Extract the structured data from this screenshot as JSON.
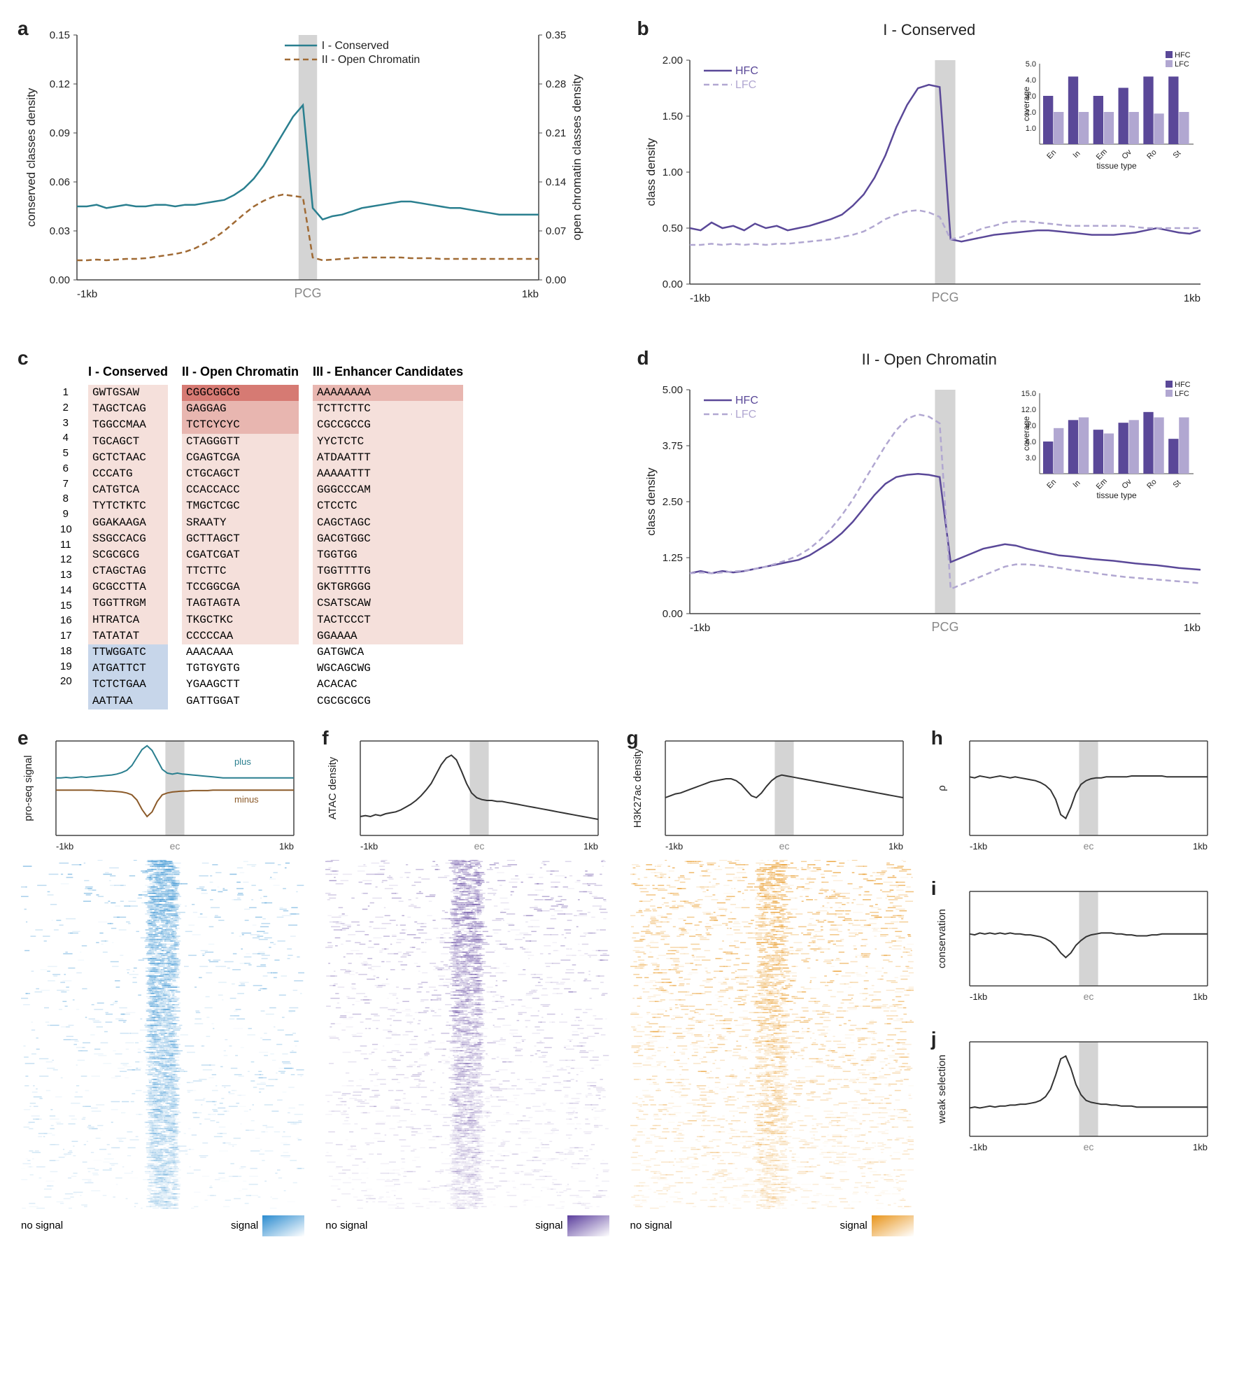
{
  "colors": {
    "teal": "#2a7f8f",
    "brown": "#8b5a29",
    "brown_dash": "#a06a34",
    "purple": "#5a4898",
    "purple_light": "#b1a7d1",
    "gray_band": "#d4d4d4",
    "axis": "#444444",
    "text": "#222222",
    "blue_heat": "#2a8bcf",
    "purple_heat": "#5a3d9c",
    "orange_heat": "#e8941a",
    "red_shade_dark": "#d67a73",
    "red_shade_mid": "#e8b6b0",
    "red_shade_light": "#f5e0db",
    "blue_shade": "#c7d6ea"
  },
  "panel_a": {
    "label": "a",
    "legend1": "I - Conserved",
    "legend2": "II - Open Chromatin",
    "xlabel_left": "-1kb",
    "xlabel_center": "PCG",
    "xlabel_right": "1kb",
    "ylabel_left": "conserved classes density",
    "ylabel_right": "open chromatin classes density",
    "yleft_ticks": [
      "0.00",
      "0.03",
      "0.06",
      "0.09",
      "0.12",
      "0.15"
    ],
    "yright_ticks": [
      "0.00",
      "0.07",
      "0.14",
      "0.21",
      "0.28",
      "0.35"
    ],
    "series1": [
      0.045,
      0.045,
      0.046,
      0.044,
      0.045,
      0.046,
      0.045,
      0.045,
      0.046,
      0.046,
      0.045,
      0.046,
      0.046,
      0.047,
      0.048,
      0.049,
      0.052,
      0.056,
      0.062,
      0.07,
      0.08,
      0.09,
      0.1,
      0.107,
      0.044,
      0.037,
      0.039,
      0.04,
      0.042,
      0.044,
      0.045,
      0.046,
      0.047,
      0.048,
      0.048,
      0.047,
      0.046,
      0.045,
      0.044,
      0.044,
      0.043,
      0.042,
      0.041,
      0.04,
      0.04,
      0.04,
      0.04,
      0.04
    ],
    "series2": [
      0.028,
      0.028,
      0.029,
      0.028,
      0.029,
      0.03,
      0.03,
      0.031,
      0.033,
      0.035,
      0.037,
      0.04,
      0.045,
      0.052,
      0.06,
      0.07,
      0.082,
      0.094,
      0.105,
      0.113,
      0.119,
      0.122,
      0.12,
      0.118,
      0.032,
      0.028,
      0.029,
      0.03,
      0.031,
      0.032,
      0.032,
      0.032,
      0.032,
      0.032,
      0.031,
      0.031,
      0.031,
      0.03,
      0.03,
      0.03,
      0.03,
      0.03,
      0.03,
      0.03,
      0.03,
      0.03,
      0.03,
      0.03
    ]
  },
  "panel_b": {
    "label": "b",
    "title": "I - Conserved",
    "legend_hfc": "HFC",
    "legend_lfc": "LFC",
    "xlabel_left": "-1kb",
    "xlabel_center": "PCG",
    "xlabel_right": "1kb",
    "ylabel": "class density",
    "yticks": [
      "0.00",
      "0.50",
      "1.00",
      "1.50",
      "2.00"
    ],
    "hfc": [
      0.5,
      0.48,
      0.55,
      0.5,
      0.52,
      0.48,
      0.54,
      0.5,
      0.52,
      0.48,
      0.5,
      0.52,
      0.55,
      0.58,
      0.62,
      0.7,
      0.8,
      0.95,
      1.15,
      1.4,
      1.6,
      1.75,
      1.78,
      1.76,
      0.4,
      0.38,
      0.4,
      0.42,
      0.44,
      0.45,
      0.46,
      0.47,
      0.48,
      0.48,
      0.47,
      0.46,
      0.45,
      0.44,
      0.44,
      0.44,
      0.45,
      0.46,
      0.48,
      0.5,
      0.48,
      0.46,
      0.45,
      0.48
    ],
    "lfc": [
      0.35,
      0.35,
      0.36,
      0.35,
      0.36,
      0.35,
      0.36,
      0.35,
      0.36,
      0.36,
      0.37,
      0.38,
      0.39,
      0.4,
      0.42,
      0.44,
      0.47,
      0.52,
      0.58,
      0.62,
      0.65,
      0.66,
      0.64,
      0.6,
      0.4,
      0.42,
      0.46,
      0.5,
      0.52,
      0.55,
      0.56,
      0.56,
      0.55,
      0.54,
      0.53,
      0.52,
      0.52,
      0.52,
      0.52,
      0.52,
      0.52,
      0.51,
      0.5,
      0.5,
      0.5,
      0.5,
      0.5,
      0.5
    ],
    "inset": {
      "ylabel": "coverage",
      "xlabel": "tissue type",
      "yticks": [
        "1.0",
        "2.0",
        "3.0",
        "4.0",
        "5.0"
      ],
      "categories": [
        "En",
        "In",
        "Em",
        "Ov",
        "Ro",
        "St"
      ],
      "hfc_vals": [
        3.0,
        4.2,
        3.0,
        3.5,
        4.2,
        4.2
      ],
      "lfc_vals": [
        2.0,
        2.0,
        2.0,
        2.0,
        1.9,
        2.0
      ],
      "legend_hfc": "HFC",
      "legend_lfc": "LFC"
    }
  },
  "panel_c": {
    "label": "c",
    "headers": [
      "I - Conserved",
      "II - Open Chromatin",
      "III - Enhancer Candidates"
    ],
    "col1": [
      "GWTGSAW",
      "TAGCTCAG",
      "TGGCCMAA",
      "TGCAGCT",
      "GCTCTAAC",
      "CCCATG",
      "CATGTCA",
      "TYTCTKTC",
      "GGAKAAGA",
      "SSGCCACG",
      "SCGCGCG",
      "CTAGCTAG",
      "GCGCCTTA",
      "TGGTTRGM",
      "HTRATCA",
      "TATATAT",
      "TTWGGATC",
      "ATGATTCT",
      "TCTCTGAA",
      "AATTAA"
    ],
    "col2": [
      "CGGCGGCG",
      "GAGGAG",
      "TCTCYCYC",
      "CTAGGGTT",
      "CGAGTCGA",
      "CTGCAGCT",
      "CCACCACC",
      "TMGCTCGC",
      "SRAATY",
      "GCTTAGCT",
      "CGATCGAT",
      "TTCTTC",
      "TCCGGCGA",
      "TAGTAGTA",
      "TKGCTKC",
      "CCCCCAA",
      "AAACAAA",
      "TGTGYGTG",
      "YGAAGCTT",
      "GATTGGAT"
    ],
    "col3": [
      "AAAAAAAA",
      "TCTTCTTC",
      "CGCCGCCG",
      "YYCTCTC",
      "ATDAATTT",
      "AAAAATTT",
      "GGGCCCAM",
      "CTCCTC",
      "CAGCTAGC",
      "GACGTGGC",
      "TGGTGG",
      "TGGTTTTG",
      "GKTGRGGG",
      "CSATSCAW",
      "TACTCCCT",
      "GGAAAA",
      "GATGWCA",
      "WGCAGCWG",
      "ACACAC",
      "CGCGCGCG"
    ]
  },
  "panel_d": {
    "label": "d",
    "title": "II - Open Chromatin",
    "legend_hfc": "HFC",
    "legend_lfc": "LFC",
    "xlabel_left": "-1kb",
    "xlabel_center": "PCG",
    "xlabel_right": "1kb",
    "ylabel": "class density",
    "yticks": [
      "0.00",
      "1.25",
      "2.50",
      "3.75",
      "5.00"
    ],
    "hfc": [
      0.9,
      0.95,
      0.9,
      0.95,
      0.92,
      0.95,
      1.0,
      1.05,
      1.1,
      1.15,
      1.2,
      1.3,
      1.45,
      1.6,
      1.8,
      2.05,
      2.35,
      2.65,
      2.9,
      3.05,
      3.1,
      3.12,
      3.1,
      3.05,
      1.15,
      1.25,
      1.35,
      1.45,
      1.5,
      1.55,
      1.52,
      1.45,
      1.4,
      1.35,
      1.3,
      1.28,
      1.25,
      1.22,
      1.2,
      1.18,
      1.15,
      1.12,
      1.1,
      1.08,
      1.05,
      1.02,
      1.0,
      0.98
    ],
    "lfc": [
      0.9,
      0.92,
      0.9,
      0.92,
      0.94,
      0.96,
      1.0,
      1.05,
      1.12,
      1.2,
      1.3,
      1.45,
      1.65,
      1.9,
      2.2,
      2.55,
      2.95,
      3.35,
      3.75,
      4.1,
      4.35,
      4.45,
      4.4,
      4.25,
      0.55,
      0.65,
      0.75,
      0.85,
      0.95,
      1.05,
      1.1,
      1.1,
      1.08,
      1.05,
      1.02,
      0.98,
      0.95,
      0.92,
      0.88,
      0.85,
      0.82,
      0.8,
      0.78,
      0.76,
      0.74,
      0.72,
      0.7,
      0.68
    ],
    "inset": {
      "ylabel": "coverage",
      "xlabel": "tissue type",
      "yticks": [
        "3.0",
        "6.0",
        "9.0",
        "12.0",
        "15.0"
      ],
      "categories": [
        "En",
        "In",
        "Em",
        "Ov",
        "Ro",
        "St"
      ],
      "hfc_vals": [
        6.0,
        10.0,
        8.2,
        9.5,
        11.5,
        6.5
      ],
      "lfc_vals": [
        8.5,
        10.5,
        7.5,
        10.0,
        10.5,
        10.5
      ],
      "legend_hfc": "HFC",
      "legend_lfc": "LFC"
    }
  },
  "panel_e": {
    "label": "e",
    "ylabel": "pro-seq signal",
    "plus_label": "plus",
    "minus_label": "minus",
    "xlabel_left": "-1kb",
    "xlabel_center": "ec",
    "xlabel_right": "1kb",
    "plus": [
      0.22,
      0.22,
      0.23,
      0.22,
      0.23,
      0.24,
      0.23,
      0.24,
      0.25,
      0.26,
      0.27,
      0.28,
      0.3,
      0.33,
      0.38,
      0.48,
      0.65,
      0.82,
      0.9,
      0.8,
      0.6,
      0.4,
      0.32,
      0.3,
      0.32,
      0.3,
      0.29,
      0.28,
      0.27,
      0.26,
      0.25,
      0.24,
      0.23,
      0.22,
      0.22,
      0.22,
      0.22,
      0.22,
      0.22,
      0.22,
      0.22,
      0.22,
      0.22,
      0.22,
      0.22,
      0.22,
      0.22,
      0.22
    ],
    "minus": [
      -0.04,
      -0.04,
      -0.04,
      -0.04,
      -0.04,
      -0.04,
      -0.04,
      -0.04,
      -0.05,
      -0.05,
      -0.06,
      -0.06,
      -0.07,
      -0.08,
      -0.1,
      -0.14,
      -0.25,
      -0.45,
      -0.6,
      -0.5,
      -0.28,
      -0.14,
      -0.1,
      -0.08,
      -0.07,
      -0.06,
      -0.06,
      -0.05,
      -0.05,
      -0.05,
      -0.05,
      -0.04,
      -0.04,
      -0.04,
      -0.04,
      -0.04,
      -0.04,
      -0.04,
      -0.04,
      -0.04,
      -0.04,
      -0.04,
      -0.04,
      -0.04,
      -0.04,
      -0.04,
      -0.04,
      -0.04
    ],
    "signal_label": "signal",
    "nosignal_label": "no signal"
  },
  "panel_f": {
    "label": "f",
    "ylabel": "ATAC density",
    "xlabel_left": "-1kb",
    "xlabel_center": "ec",
    "xlabel_right": "1kb",
    "series": [
      0.2,
      0.21,
      0.2,
      0.22,
      0.21,
      0.23,
      0.24,
      0.25,
      0.27,
      0.3,
      0.33,
      0.37,
      0.42,
      0.48,
      0.55,
      0.65,
      0.75,
      0.82,
      0.85,
      0.8,
      0.68,
      0.55,
      0.45,
      0.4,
      0.38,
      0.37,
      0.37,
      0.36,
      0.36,
      0.35,
      0.34,
      0.33,
      0.32,
      0.31,
      0.3,
      0.29,
      0.28,
      0.27,
      0.26,
      0.25,
      0.24,
      0.23,
      0.22,
      0.21,
      0.2,
      0.19,
      0.18,
      0.17
    ],
    "signal_label": "signal",
    "nosignal_label": "no signal"
  },
  "panel_g": {
    "label": "g",
    "ylabel": "H3K27ac density",
    "xlabel_left": "-1kb",
    "xlabel_center": "ec",
    "xlabel_right": "1kb",
    "series": [
      0.4,
      0.42,
      0.44,
      0.45,
      0.47,
      0.49,
      0.51,
      0.53,
      0.55,
      0.57,
      0.58,
      0.59,
      0.6,
      0.6,
      0.58,
      0.54,
      0.48,
      0.42,
      0.4,
      0.45,
      0.52,
      0.58,
      0.62,
      0.64,
      0.63,
      0.62,
      0.61,
      0.6,
      0.59,
      0.58,
      0.57,
      0.56,
      0.55,
      0.54,
      0.53,
      0.52,
      0.51,
      0.5,
      0.49,
      0.48,
      0.47,
      0.46,
      0.45,
      0.44,
      0.43,
      0.42,
      0.41,
      0.4
    ],
    "signal_label": "signal",
    "nosignal_label": "no signal"
  },
  "panel_h": {
    "label": "h",
    "ylabel": "ρ",
    "xlabel_left": "-1kb",
    "xlabel_center": "ec",
    "xlabel_right": "1kb",
    "series": [
      0.62,
      0.61,
      0.63,
      0.62,
      0.61,
      0.62,
      0.63,
      0.62,
      0.61,
      0.62,
      0.61,
      0.6,
      0.59,
      0.58,
      0.56,
      0.53,
      0.48,
      0.38,
      0.22,
      0.18,
      0.3,
      0.45,
      0.54,
      0.58,
      0.6,
      0.61,
      0.61,
      0.62,
      0.62,
      0.62,
      0.62,
      0.62,
      0.63,
      0.63,
      0.63,
      0.63,
      0.63,
      0.63,
      0.63,
      0.62,
      0.62,
      0.62,
      0.62,
      0.62,
      0.62,
      0.62,
      0.62,
      0.62
    ]
  },
  "panel_i": {
    "label": "i",
    "ylabel": "conservation",
    "xlabel_left": "-1kb",
    "xlabel_center": "ec",
    "xlabel_right": "1kb",
    "series": [
      0.55,
      0.54,
      0.56,
      0.55,
      0.56,
      0.55,
      0.56,
      0.55,
      0.56,
      0.55,
      0.55,
      0.54,
      0.54,
      0.53,
      0.52,
      0.5,
      0.47,
      0.42,
      0.35,
      0.3,
      0.35,
      0.43,
      0.48,
      0.52,
      0.54,
      0.55,
      0.56,
      0.56,
      0.56,
      0.55,
      0.55,
      0.54,
      0.54,
      0.53,
      0.53,
      0.53,
      0.54,
      0.54,
      0.55,
      0.55,
      0.55,
      0.55,
      0.55,
      0.55,
      0.55,
      0.55,
      0.55,
      0.55
    ]
  },
  "panel_j": {
    "label": "j",
    "ylabel": "weak selection",
    "xlabel_left": "-1kb",
    "xlabel_center": "ec",
    "xlabel_right": "1kb",
    "series": [
      0.3,
      0.31,
      0.3,
      0.31,
      0.32,
      0.31,
      0.32,
      0.32,
      0.33,
      0.33,
      0.34,
      0.34,
      0.35,
      0.36,
      0.38,
      0.42,
      0.5,
      0.65,
      0.82,
      0.85,
      0.72,
      0.55,
      0.44,
      0.38,
      0.36,
      0.35,
      0.34,
      0.34,
      0.33,
      0.33,
      0.32,
      0.32,
      0.32,
      0.31,
      0.31,
      0.31,
      0.31,
      0.31,
      0.31,
      0.31,
      0.31,
      0.31,
      0.31,
      0.31,
      0.31,
      0.31,
      0.31,
      0.31
    ]
  }
}
